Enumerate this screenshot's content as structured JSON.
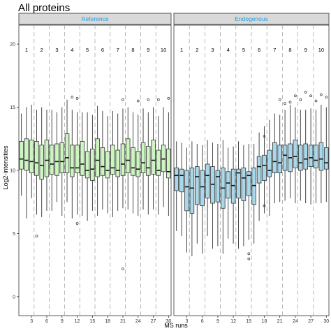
{
  "chart_data": {
    "type": "boxplot",
    "title": "All proteins",
    "xlabel": "MS runs",
    "ylabel": "Log2-intensities",
    "ylim": [
      -1.5,
      21.5
    ],
    "yticks": [
      0,
      5,
      10,
      15,
      20
    ],
    "xticks": [
      3,
      6,
      9,
      12,
      15,
      18,
      21,
      24,
      27,
      30
    ],
    "runs_per_group": 3,
    "colors": {
      "Reference": "#ccf5c0",
      "Endogenous": "#a9d8ea",
      "strip_text": "#1ea0e8",
      "strip_bg": "#d9d9d9"
    },
    "group_labels": [
      "1",
      "2",
      "3",
      "4",
      "5",
      "6",
      "7",
      "8",
      "9",
      "10"
    ],
    "panels": [
      {
        "name": "Reference",
        "boxes": [
          {
            "q1": 10.1,
            "median": 10.9,
            "q3": 12.3,
            "lo": 8.0,
            "hi": 14.5,
            "outliers": []
          },
          {
            "q1": 10.0,
            "median": 10.8,
            "q3": 12.5,
            "lo": 6.2,
            "hi": 15.0,
            "outliers": []
          },
          {
            "q1": 9.8,
            "median": 10.7,
            "q3": 12.4,
            "lo": 7.8,
            "hi": 15.2,
            "outliers": []
          },
          {
            "q1": 9.6,
            "median": 10.6,
            "q3": 12.3,
            "lo": 6.5,
            "hi": 14.8,
            "outliers": [
              4.8
            ]
          },
          {
            "q1": 9.3,
            "median": 10.4,
            "q3": 12.0,
            "lo": 6.3,
            "hi": 15.0,
            "outliers": []
          },
          {
            "q1": 9.5,
            "median": 10.8,
            "q3": 12.4,
            "lo": 6.8,
            "hi": 14.8,
            "outliers": []
          },
          {
            "q1": 9.7,
            "median": 10.5,
            "q3": 12.0,
            "lo": 6.8,
            "hi": 14.8,
            "outliers": []
          },
          {
            "q1": 9.6,
            "median": 10.7,
            "q3": 12.1,
            "lo": 7.5,
            "hi": 14.6,
            "outliers": []
          },
          {
            "q1": 9.8,
            "median": 10.7,
            "q3": 12.2,
            "lo": 6.4,
            "hi": 15.0,
            "outliers": []
          },
          {
            "q1": 9.8,
            "median": 11.0,
            "q3": 12.9,
            "lo": 7.5,
            "hi": 15.6,
            "outliers": []
          },
          {
            "q1": 9.5,
            "median": 10.2,
            "q3": 12.0,
            "lo": 6.2,
            "hi": 14.8,
            "outliers": [
              15.8
            ]
          },
          {
            "q1": 9.8,
            "median": 10.2,
            "q3": 12.0,
            "lo": 6.5,
            "hi": 14.6,
            "outliers": [
              5.8,
              15.7
            ]
          },
          {
            "q1": 9.6,
            "median": 10.5,
            "q3": 12.3,
            "lo": 6.4,
            "hi": 14.6,
            "outliers": []
          },
          {
            "q1": 9.4,
            "median": 10.0,
            "q3": 11.5,
            "lo": 6.0,
            "hi": 14.6,
            "outliers": []
          },
          {
            "q1": 9.2,
            "median": 10.1,
            "q3": 11.7,
            "lo": 6.8,
            "hi": 14.4,
            "outliers": []
          },
          {
            "q1": 9.5,
            "median": 10.8,
            "q3": 12.5,
            "lo": 6.4,
            "hi": 15.1,
            "outliers": []
          },
          {
            "q1": 9.6,
            "median": 10.3,
            "q3": 11.8,
            "lo": 6.9,
            "hi": 14.7,
            "outliers": []
          },
          {
            "q1": 9.4,
            "median": 10.0,
            "q3": 11.5,
            "lo": 6.6,
            "hi": 14.3,
            "outliers": []
          },
          {
            "q1": 9.7,
            "median": 10.2,
            "q3": 12.0,
            "lo": 6.3,
            "hi": 14.7,
            "outliers": []
          },
          {
            "q1": 9.5,
            "median": 10.0,
            "q3": 11.6,
            "lo": 6.8,
            "hi": 14.5,
            "outliers": []
          },
          {
            "q1": 9.6,
            "median": 10.5,
            "q3": 12.1,
            "lo": 7.0,
            "hi": 14.9,
            "outliers": [
              2.2,
              15.6
            ]
          },
          {
            "q1": 9.8,
            "median": 10.8,
            "q3": 12.5,
            "lo": 6.9,
            "hi": 15.0,
            "outliers": []
          },
          {
            "q1": 9.6,
            "median": 10.2,
            "q3": 11.8,
            "lo": 6.6,
            "hi": 14.6,
            "outliers": []
          },
          {
            "q1": 9.5,
            "median": 10.1,
            "q3": 11.5,
            "lo": 6.4,
            "hi": 14.4,
            "outliers": [
              15.5
            ]
          },
          {
            "q1": 9.8,
            "median": 10.6,
            "q3": 12.2,
            "lo": 6.9,
            "hi": 14.9,
            "outliers": []
          },
          {
            "q1": 9.6,
            "median": 10.2,
            "q3": 11.9,
            "lo": 6.5,
            "hi": 14.6,
            "outliers": [
              15.6
            ]
          },
          {
            "q1": 9.7,
            "median": 10.8,
            "q3": 12.4,
            "lo": 6.9,
            "hi": 15.0,
            "outliers": []
          },
          {
            "q1": 9.6,
            "median": 10.0,
            "q3": 11.6,
            "lo": 6.5,
            "hi": 14.3,
            "outliers": [
              15.6
            ]
          },
          {
            "q1": 9.9,
            "median": 10.9,
            "q3": 12.0,
            "lo": 7.1,
            "hi": 15.0,
            "outliers": []
          },
          {
            "q1": 9.4,
            "median": 9.9,
            "q3": 11.7,
            "lo": 6.4,
            "hi": 14.6,
            "outliers": [
              15.7
            ]
          }
        ]
      },
      {
        "name": "Endogenous",
        "boxes": [
          {
            "q1": 8.4,
            "median": 9.6,
            "q3": 10.2,
            "lo": 5.2,
            "hi": 12.3,
            "outliers": []
          },
          {
            "q1": 8.3,
            "median": 9.6,
            "q3": 10.1,
            "lo": 4.8,
            "hi": 12.2,
            "outliers": []
          },
          {
            "q1": 6.8,
            "median": 8.7,
            "q3": 10.0,
            "lo": 3.5,
            "hi": 11.8,
            "outliers": []
          },
          {
            "q1": 6.6,
            "median": 8.6,
            "q3": 10.2,
            "lo": 3.2,
            "hi": 12.3,
            "outliers": []
          },
          {
            "q1": 7.3,
            "median": 9.5,
            "q3": 10.3,
            "lo": 4.2,
            "hi": 12.1,
            "outliers": []
          },
          {
            "q1": 7.2,
            "median": 8.7,
            "q3": 10.0,
            "lo": 3.4,
            "hi": 12.0,
            "outliers": []
          },
          {
            "q1": 7.8,
            "median": 9.6,
            "q3": 10.5,
            "lo": 4.8,
            "hi": 12.4,
            "outliers": []
          },
          {
            "q1": 7.4,
            "median": 8.9,
            "q3": 10.3,
            "lo": 3.8,
            "hi": 12.2,
            "outliers": []
          },
          {
            "q1": 7.5,
            "median": 9.5,
            "q3": 10.0,
            "lo": 4.0,
            "hi": 12.1,
            "outliers": []
          },
          {
            "q1": 7.0,
            "median": 8.6,
            "q3": 10.2,
            "lo": 3.4,
            "hi": 12.4,
            "outliers": []
          },
          {
            "q1": 7.8,
            "median": 9.0,
            "q3": 9.9,
            "lo": 4.6,
            "hi": 11.8,
            "outliers": []
          },
          {
            "q1": 7.4,
            "median": 8.8,
            "q3": 10.1,
            "lo": 4.2,
            "hi": 11.9,
            "outliers": []
          },
          {
            "q1": 7.8,
            "median": 9.8,
            "q3": 10.1,
            "lo": 3.8,
            "hi": 12.3,
            "outliers": []
          },
          {
            "q1": 7.6,
            "median": 9.4,
            "q3": 10.2,
            "lo": 4.0,
            "hi": 12.0,
            "outliers": []
          },
          {
            "q1": 8.0,
            "median": 9.6,
            "q3": 9.9,
            "lo": 4.5,
            "hi": 12.1,
            "outliers": [
              3.0,
              3.4
            ]
          },
          {
            "q1": 7.3,
            "median": 8.8,
            "q3": 10.2,
            "lo": 4.2,
            "hi": 12.1,
            "outliers": []
          },
          {
            "q1": 9.0,
            "median": 10.3,
            "q3": 11.1,
            "lo": 6.0,
            "hi": 13.0,
            "outliers": []
          },
          {
            "q1": 9.2,
            "median": 10.4,
            "q3": 11.2,
            "lo": 6.6,
            "hi": 13.5,
            "outliers": [
              7.2,
              12.7
            ]
          },
          {
            "q1": 9.5,
            "median": 10.0,
            "q3": 11.6,
            "lo": 6.4,
            "hi": 14.0,
            "outliers": []
          },
          {
            "q1": 9.8,
            "median": 10.7,
            "q3": 12.2,
            "lo": 7.4,
            "hi": 14.5,
            "outliers": []
          },
          {
            "q1": 9.8,
            "median": 10.6,
            "q3": 12.0,
            "lo": 7.5,
            "hi": 14.4,
            "outliers": [
              15.6
            ]
          },
          {
            "q1": 10.0,
            "median": 11.2,
            "q3": 12.0,
            "lo": 7.6,
            "hi": 14.8,
            "outliers": [
              15.3
            ]
          },
          {
            "q1": 9.9,
            "median": 11.0,
            "q3": 12.1,
            "lo": 7.8,
            "hi": 15.2,
            "outliers": [
              15.4
            ]
          },
          {
            "q1": 10.2,
            "median": 11.1,
            "q3": 12.4,
            "lo": 7.4,
            "hi": 15.0,
            "outliers": [
              15.9
            ]
          },
          {
            "q1": 10.0,
            "median": 10.6,
            "q3": 12.0,
            "lo": 7.6,
            "hi": 14.8,
            "outliers": [
              15.6
            ]
          },
          {
            "q1": 10.1,
            "median": 10.9,
            "q3": 12.1,
            "lo": 7.4,
            "hi": 14.8,
            "outliers": [
              16.2
            ]
          },
          {
            "q1": 10.3,
            "median": 11.0,
            "q3": 12.0,
            "lo": 7.3,
            "hi": 14.9,
            "outliers": [
              15.9
            ]
          },
          {
            "q1": 10.2,
            "median": 10.8,
            "q3": 12.0,
            "lo": 7.4,
            "hi": 14.8,
            "outliers": [
              15.5
            ]
          },
          {
            "q1": 10.0,
            "median": 10.9,
            "q3": 12.2,
            "lo": 7.4,
            "hi": 15.2,
            "outliers": [
              16.0
            ]
          },
          {
            "q1": 10.1,
            "median": 10.6,
            "q3": 11.8,
            "lo": 7.5,
            "hi": 15.0,
            "outliers": [
              15.8
            ]
          }
        ]
      }
    ]
  }
}
